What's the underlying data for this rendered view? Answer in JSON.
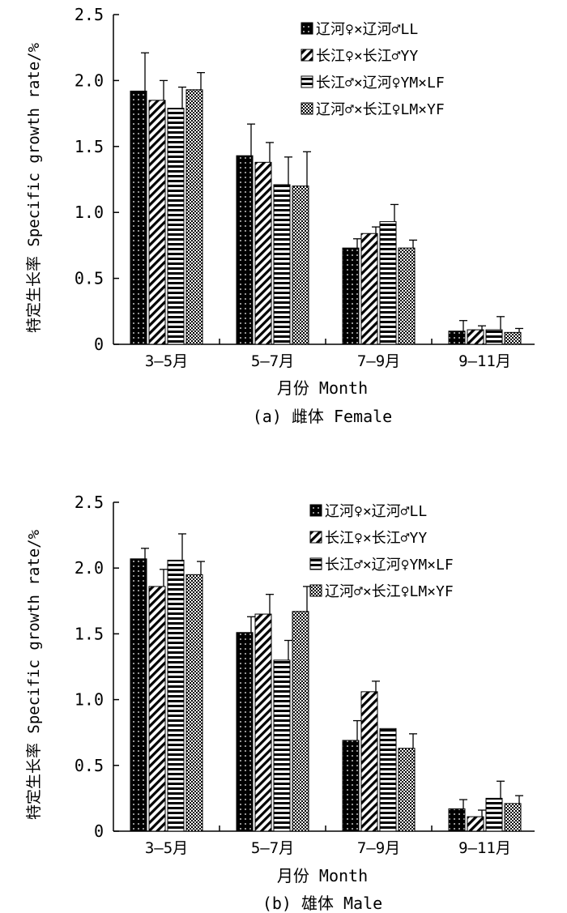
{
  "chart_data": [
    {
      "type": "bar",
      "caption": "(a) 雌体 Female",
      "xlabel": "月份 Month",
      "ylabel": "特定生长率 Specific growth rate/%",
      "ylim": [
        0,
        2.5
      ],
      "yticks": [
        "0",
        "0.5",
        "1.0",
        "1.5",
        "2.0",
        "2.5"
      ],
      "categories": [
        "3—5月",
        "5—7月",
        "7—9月",
        "9—11月"
      ],
      "legend_position": "top-right",
      "series": [
        {
          "name": "辽河♀×辽河♂LL",
          "pattern": "dots",
          "values": [
            1.92,
            1.43,
            0.73,
            0.1
          ],
          "errors": [
            0.29,
            0.24,
            0.07,
            0.08
          ]
        },
        {
          "name": "长江♀×长江♂YY",
          "pattern": "diagonal",
          "values": [
            1.85,
            1.38,
            0.84,
            0.11
          ],
          "errors": [
            0.15,
            0.15,
            0.05,
            0.03
          ]
        },
        {
          "name": "长江♂×辽河♀YM×LF",
          "pattern": "horizontal",
          "values": [
            1.79,
            1.21,
            0.93,
            0.11
          ],
          "errors": [
            0.16,
            0.21,
            0.13,
            0.1
          ]
        },
        {
          "name": "辽河♂×长江♀LM×YF",
          "pattern": "checker",
          "values": [
            1.93,
            1.2,
            0.73,
            0.09
          ],
          "errors": [
            0.13,
            0.26,
            0.06,
            0.03
          ]
        }
      ]
    },
    {
      "type": "bar",
      "caption": "(b) 雄体 Male",
      "xlabel": "月份 Month",
      "ylabel": "特定生长率 Specific growth rate/%",
      "ylim": [
        0,
        2.5
      ],
      "yticks": [
        "0",
        "0.5",
        "1.0",
        "1.5",
        "2.0",
        "2.5"
      ],
      "categories": [
        "3—5月",
        "5—7月",
        "7—9月",
        "9—11月"
      ],
      "legend_position": "top-right",
      "series": [
        {
          "name": "辽河♀×辽河♂LL",
          "pattern": "dots",
          "values": [
            2.07,
            1.51,
            0.69,
            0.17
          ],
          "errors": [
            0.08,
            0.12,
            0.15,
            0.07
          ]
        },
        {
          "name": "长江♀×长江♂YY",
          "pattern": "diagonal",
          "values": [
            1.86,
            1.65,
            1.06,
            0.11
          ],
          "errors": [
            0.13,
            0.15,
            0.08,
            0.05
          ]
        },
        {
          "name": "长江♂×辽河♀YM×LF",
          "pattern": "horizontal",
          "values": [
            2.06,
            1.3,
            0.78,
            0.25
          ],
          "errors": [
            0.2,
            0.15,
            0.0,
            0.13
          ]
        },
        {
          "name": "辽河♂×长江♀LM×YF",
          "pattern": "checker",
          "values": [
            1.95,
            1.67,
            0.63,
            0.21
          ],
          "errors": [
            0.1,
            0.19,
            0.11,
            0.06
          ]
        }
      ]
    }
  ]
}
